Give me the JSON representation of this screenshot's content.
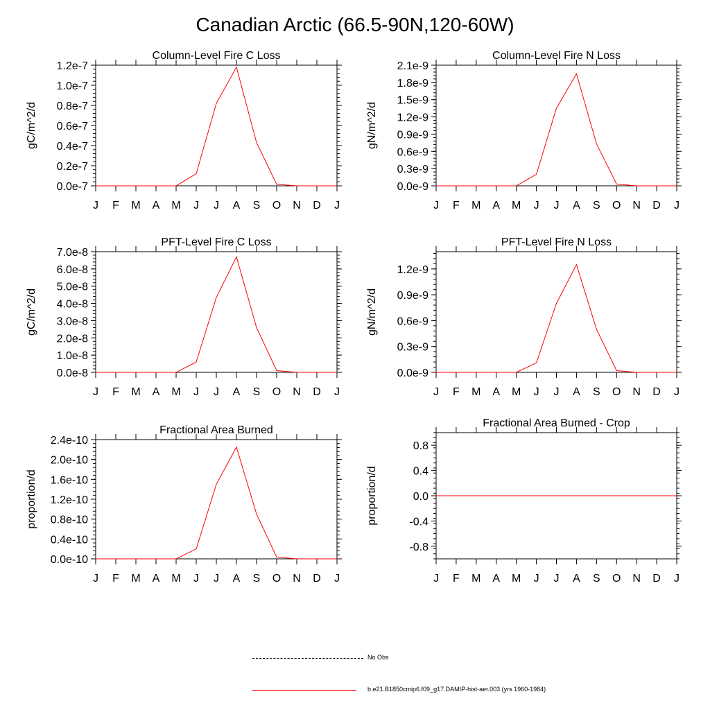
{
  "page_title": "Canadian Arctic (66.5-90N,120-60W)",
  "months": [
    "J",
    "F",
    "M",
    "A",
    "M",
    "J",
    "J",
    "A",
    "S",
    "O",
    "N",
    "D",
    "J"
  ],
  "line_color": "#ff0000",
  "legend": {
    "obs_label": "No Obs",
    "model_label": "b.e21.B1850cmip6.f09_g17.DAMIP-hist-aer.003 (yrs 1960-1984)"
  },
  "chart_data": [
    {
      "type": "line",
      "title": "Column-Level Fire C Loss",
      "ylabel": "gC/m^2/d",
      "ylim": [
        0,
        1.2e-07
      ],
      "yticks": [
        0,
        2e-08,
        4e-08,
        6e-08,
        8e-08,
        1e-07,
        1.2e-07
      ],
      "yticklabels": [
        "0.0e-7",
        "0.2e-7",
        "0.4e-7",
        "0.6e-7",
        "0.8e-7",
        "1.0e-7",
        "1.2e-7"
      ],
      "series": [
        {
          "values": [
            0,
            0,
            0,
            0,
            0,
            1.2e-08,
            8.2e-08,
            1.18e-07,
            4.3e-08,
            1.5e-09,
            0,
            0,
            0
          ]
        }
      ]
    },
    {
      "type": "line",
      "title": "Column-Level Fire N Loss",
      "ylabel": "gN/m^2/d",
      "ylim": [
        0,
        2.1e-09
      ],
      "yticks": [
        0,
        3e-10,
        6e-10,
        9e-10,
        1.2e-09,
        1.5e-09,
        1.8e-09,
        2.1e-09
      ],
      "yticklabels": [
        "0.0e-9",
        "0.3e-9",
        "0.6e-9",
        "0.9e-9",
        "1.2e-9",
        "1.5e-9",
        "1.8e-9",
        "2.1e-9"
      ],
      "series": [
        {
          "values": [
            0,
            0,
            0,
            0,
            0,
            2e-10,
            1.35e-09,
            1.95e-09,
            7.3e-10,
            3e-11,
            0,
            0,
            0
          ]
        }
      ]
    },
    {
      "type": "line",
      "title": "PFT-Level Fire C Loss",
      "ylabel": "gC/m^2/d",
      "ylim": [
        0,
        7e-08
      ],
      "yticks": [
        0,
        1e-08,
        2e-08,
        3e-08,
        4e-08,
        5e-08,
        6e-08,
        7e-08
      ],
      "yticklabels": [
        "0.0e-8",
        "1.0e-8",
        "2.0e-8",
        "3.0e-8",
        "4.0e-8",
        "5.0e-8",
        "6.0e-8",
        "7.0e-8"
      ],
      "series": [
        {
          "values": [
            0,
            0,
            0,
            0,
            0,
            6e-09,
            4.35e-08,
            6.7e-08,
            2.6e-08,
            1e-09,
            0,
            0,
            0
          ]
        }
      ]
    },
    {
      "type": "line",
      "title": "PFT-Level Fire N Loss",
      "ylabel": "gN/m^2/d",
      "ylim": [
        0,
        1.4e-09
      ],
      "yticks": [
        0,
        3e-10,
        6e-10,
        9e-10,
        1.2e-09
      ],
      "yticklabels": [
        "0.0e-9",
        "0.3e-9",
        "0.6e-9",
        "0.9e-9",
        "1.2e-9"
      ],
      "series": [
        {
          "values": [
            0,
            0,
            0,
            0,
            0,
            1.1e-10,
            8e-10,
            1.25e-09,
            5e-10,
            2e-11,
            0,
            0,
            0
          ]
        }
      ]
    },
    {
      "type": "line",
      "title": "Fractional Area Burned",
      "ylabel": "proportion/d",
      "ylim": [
        0,
        2.4e-10
      ],
      "yticks": [
        0,
        4e-11,
        8e-11,
        1.2e-10,
        1.6e-10,
        2e-10,
        2.4e-10
      ],
      "yticklabels": [
        "0.0e-10",
        "0.4e-10",
        "0.8e-10",
        "1.2e-10",
        "1.6e-10",
        "2.0e-10",
        "2.4e-10"
      ],
      "series": [
        {
          "values": [
            0,
            0,
            0,
            0,
            0,
            2e-11,
            1.5e-10,
            2.25e-10,
            9e-11,
            3.5e-12,
            0,
            0,
            0
          ]
        }
      ]
    },
    {
      "type": "line",
      "title": "Fractional Area Burned - Crop",
      "ylabel": "proportion/d",
      "ylim": [
        -1,
        1
      ],
      "yticks": [
        -0.8,
        -0.4,
        0,
        0.4,
        0.8
      ],
      "yticklabels": [
        "-0.8",
        "-0.4",
        "0.0",
        "0.4",
        "0.8"
      ],
      "series": [
        {
          "values": [
            0,
            0,
            0,
            0,
            0,
            0,
            0,
            0,
            0,
            0,
            0,
            0,
            0
          ]
        }
      ]
    }
  ]
}
